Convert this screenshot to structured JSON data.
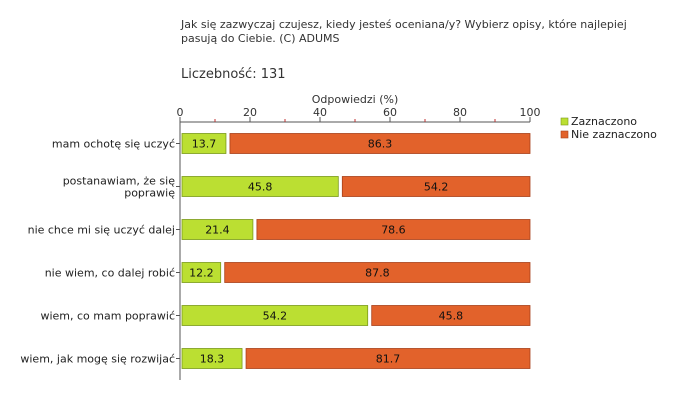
{
  "title": "Jak się zazwyczaj czujesz, kiedy jesteś oceniana/y? Wybierz opisy, które najlepiej pasują do Ciebie. (C)  ADUMS",
  "count_text": "Liczebność: 131",
  "chart_data": {
    "type": "bar",
    "orientation": "horizontal",
    "stacked": true,
    "xlabel": "Odpowiedzi (%)",
    "xlim": [
      0,
      100
    ],
    "xticks": [
      0,
      20,
      40,
      60,
      80,
      100
    ],
    "categories": [
      [
        "mam ochotę się uczyć"
      ],
      [
        "postanawiam, że się",
        "poprawię"
      ],
      [
        "nie chce mi się uczyć dalej"
      ],
      [
        "nie wiem, co dalej robić"
      ],
      [
        "wiem, co mam poprawić"
      ],
      [
        "wiem, jak mogę się rozwijać"
      ]
    ],
    "series": [
      {
        "name": "Zaznaczono",
        "color": "#bbdf32",
        "values": [
          13.7,
          45.8,
          21.4,
          12.2,
          54.2,
          18.3
        ]
      },
      {
        "name": "Nie zaznaczono",
        "color": "#e2622b",
        "values": [
          86.3,
          54.2,
          78.6,
          87.8,
          45.8,
          81.7
        ]
      }
    ],
    "legend_position": "right"
  }
}
